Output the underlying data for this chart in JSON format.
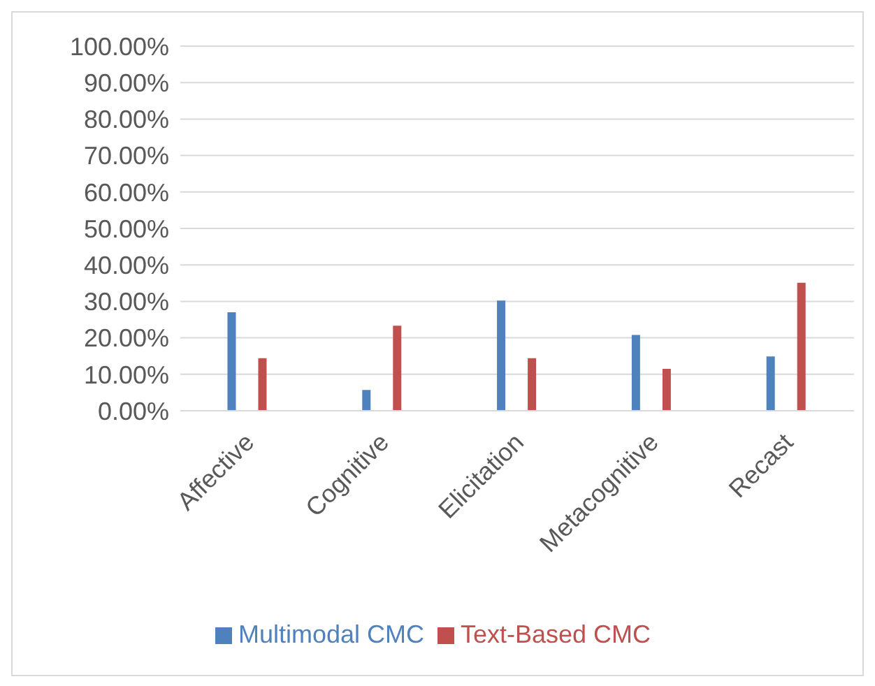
{
  "chart_data": {
    "type": "bar",
    "categories": [
      "Affective",
      "Cognitive",
      "Elicitation",
      "Metacognitive",
      "Recast"
    ],
    "series": [
      {
        "name": "Multimodal CMC",
        "color": "#4f81bd",
        "values": [
          27,
          5.7,
          30.2,
          20.8,
          14.9
        ]
      },
      {
        "name": "Text-Based CMC",
        "color": "#c0504d",
        "values": [
          14.4,
          23.3,
          14.4,
          11.5,
          35.1
        ]
      }
    ],
    "ylim": [
      0,
      100
    ],
    "yticks": [
      {
        "value": 0,
        "label": "0.00%"
      },
      {
        "value": 10,
        "label": "10.00%"
      },
      {
        "value": 20,
        "label": "20.00%"
      },
      {
        "value": 30,
        "label": "30.00%"
      },
      {
        "value": 40,
        "label": "40.00%"
      },
      {
        "value": 50,
        "label": "50.00%"
      },
      {
        "value": 60,
        "label": "60.00%"
      },
      {
        "value": 70,
        "label": "70.00%"
      },
      {
        "value": 80,
        "label": "80.00%"
      },
      {
        "value": 90,
        "label": "90.00%"
      },
      {
        "value": 100,
        "label": "100.00%"
      }
    ],
    "grid": "y",
    "legend": "bottom"
  }
}
